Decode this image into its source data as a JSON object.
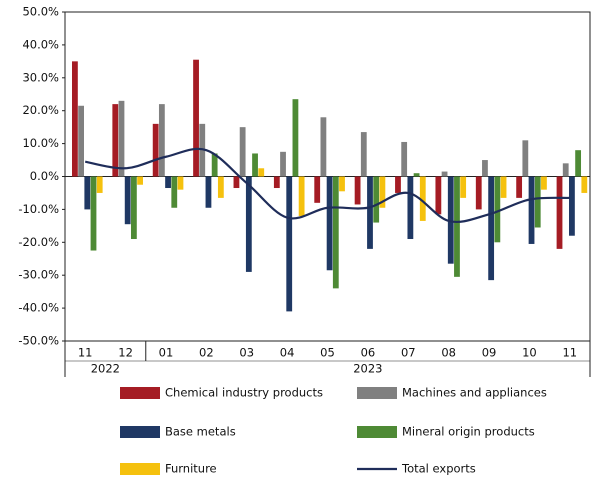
{
  "chart_data": {
    "type": "bar",
    "categories": [
      "11",
      "12",
      "01",
      "02",
      "03",
      "04",
      "05",
      "06",
      "07",
      "08",
      "09",
      "10",
      "11"
    ],
    "year_groups": [
      {
        "label": "2022",
        "count": 2
      },
      {
        "label": "2023",
        "count": 11
      }
    ],
    "series": [
      {
        "name": "Chemical industry products",
        "color": "#a51c24",
        "values": [
          35,
          22,
          16,
          35.5,
          -3.5,
          -3.5,
          -8,
          -8.5,
          -5,
          -11.5,
          -10,
          -6.5,
          -22
        ]
      },
      {
        "name": "Machines and appliances",
        "color": "#808080",
        "values": [
          21.5,
          23,
          22,
          16,
          15,
          7.5,
          18,
          13.5,
          10.5,
          1.5,
          5,
          11,
          4
        ]
      },
      {
        "name": "Base metals",
        "color": "#1f3864",
        "values": [
          -10,
          -14.5,
          -3.5,
          -9.5,
          -29,
          -41,
          -28.5,
          -22,
          -19,
          -26.5,
          -31.5,
          -20.5,
          -18
        ]
      },
      {
        "name": "Mineral origin products",
        "color": "#4e8a35",
        "values": [
          -22.5,
          -19,
          -9.5,
          7,
          7,
          23.5,
          -34,
          -14,
          1,
          -30.5,
          -20,
          -15.5,
          8
        ]
      },
      {
        "name": "Furniture",
        "color": "#f5c10e",
        "values": [
          -5,
          -2.5,
          -4,
          -6.5,
          2.5,
          -12,
          -4.5,
          -9.5,
          -13.5,
          -6.5,
          -6.5,
          -4,
          -5
        ]
      },
      {
        "name": "Total exports",
        "color": "#1f2d5a",
        "line": true,
        "values": [
          4.5,
          2.5,
          6,
          8,
          -2,
          -12.5,
          -9.5,
          -9.5,
          -5,
          -13.5,
          -11.5,
          -7,
          -6.5
        ]
      }
    ],
    "ylim": [
      -50,
      50
    ],
    "yticks": [
      {
        "value": -50,
        "label": "-50.0%"
      },
      {
        "value": -40,
        "label": "-40.0%"
      },
      {
        "value": -30,
        "label": "-30.0%"
      },
      {
        "value": -20,
        "label": "-20.0%"
      },
      {
        "value": -10,
        "label": "-10.0%"
      },
      {
        "value": 0,
        "label": "0.0%"
      },
      {
        "value": 10,
        "label": "10.0%"
      },
      {
        "value": 20,
        "label": "20.0%"
      },
      {
        "value": 30,
        "label": "30.0%"
      },
      {
        "value": 40,
        "label": "40.0%"
      },
      {
        "value": 50,
        "label": "50.0%"
      }
    ]
  }
}
